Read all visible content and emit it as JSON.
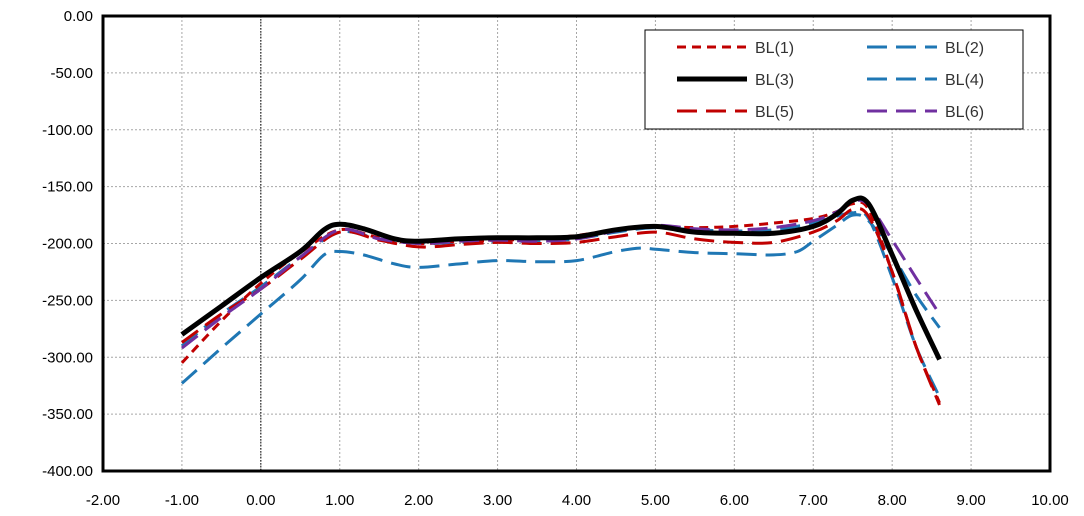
{
  "chart_data": {
    "type": "line",
    "title": "",
    "xlabel": "",
    "ylabel": "",
    "xlim": [
      -2,
      10
    ],
    "ylim": [
      -400,
      0
    ],
    "x_ticks": [
      "-2.00",
      "-1.00",
      "0.00",
      "1.00",
      "2.00",
      "3.00",
      "4.00",
      "5.00",
      "6.00",
      "7.00",
      "8.00",
      "9.00",
      "10.00"
    ],
    "y_ticks": [
      "0.00",
      "-50.00",
      "-100.00",
      "-150.00",
      "-200.00",
      "-250.00",
      "-300.00",
      "-350.00",
      "-400.00"
    ],
    "grid": true,
    "legend_position": "top-right",
    "reference_line_x": 0,
    "series": [
      {
        "name": "BL(1)",
        "color": "#c00000",
        "dash": "short-dash",
        "width": 3,
        "points": [
          [
            -1.0,
            -305
          ],
          [
            -0.5,
            -268
          ],
          [
            0.0,
            -235
          ],
          [
            0.5,
            -208
          ],
          [
            1.0,
            -188
          ],
          [
            1.5,
            -195
          ],
          [
            2.0,
            -200
          ],
          [
            2.5,
            -198
          ],
          [
            3.0,
            -197
          ],
          [
            3.5,
            -196
          ],
          [
            4.0,
            -193
          ],
          [
            4.5,
            -188
          ],
          [
            5.0,
            -185
          ],
          [
            5.5,
            -186
          ],
          [
            6.0,
            -185
          ],
          [
            6.5,
            -182
          ],
          [
            7.0,
            -178
          ],
          [
            7.3,
            -172
          ],
          [
            7.5,
            -165
          ],
          [
            7.7,
            -170
          ],
          [
            8.0,
            -225
          ],
          [
            8.3,
            -290
          ],
          [
            8.6,
            -340
          ]
        ]
      },
      {
        "name": "BL(2)",
        "color": "#1f77b4",
        "dash": "long-dash",
        "width": 3,
        "points": [
          [
            -1.0,
            -290
          ],
          [
            -0.5,
            -262
          ],
          [
            0.0,
            -238
          ],
          [
            0.5,
            -212
          ],
          [
            1.0,
            -190
          ],
          [
            1.5,
            -196
          ],
          [
            2.0,
            -200
          ],
          [
            2.5,
            -199
          ],
          [
            3.0,
            -198
          ],
          [
            3.5,
            -198
          ],
          [
            4.0,
            -196
          ],
          [
            4.5,
            -190
          ],
          [
            5.0,
            -186
          ],
          [
            5.5,
            -188
          ],
          [
            6.0,
            -189
          ],
          [
            6.5,
            -188
          ],
          [
            7.0,
            -182
          ],
          [
            7.3,
            -176
          ],
          [
            7.5,
            -173
          ],
          [
            7.7,
            -178
          ],
          [
            8.0,
            -230
          ],
          [
            8.3,
            -290
          ],
          [
            8.6,
            -335
          ]
        ]
      },
      {
        "name": "BL(3)",
        "color": "#000000",
        "dash": "solid",
        "width": 5,
        "points": [
          [
            -1.0,
            -280
          ],
          [
            -0.5,
            -255
          ],
          [
            0.0,
            -230
          ],
          [
            0.5,
            -207
          ],
          [
            0.8,
            -188
          ],
          [
            1.0,
            -183
          ],
          [
            1.3,
            -187
          ],
          [
            1.7,
            -196
          ],
          [
            2.0,
            -198
          ],
          [
            2.5,
            -196
          ],
          [
            3.0,
            -195
          ],
          [
            3.5,
            -195
          ],
          [
            4.0,
            -194
          ],
          [
            4.5,
            -188
          ],
          [
            5.0,
            -185
          ],
          [
            5.5,
            -190
          ],
          [
            6.0,
            -191
          ],
          [
            6.5,
            -191
          ],
          [
            7.0,
            -185
          ],
          [
            7.3,
            -174
          ],
          [
            7.5,
            -162
          ],
          [
            7.7,
            -165
          ],
          [
            8.0,
            -210
          ],
          [
            8.3,
            -258
          ],
          [
            8.6,
            -302
          ]
        ]
      },
      {
        "name": "BL(4)",
        "color": "#1f77b4",
        "dash": "long-dash",
        "width": 3,
        "points": [
          [
            -1.0,
            -323
          ],
          [
            -0.5,
            -292
          ],
          [
            0.0,
            -262
          ],
          [
            0.5,
            -232
          ],
          [
            0.8,
            -210
          ],
          [
            1.0,
            -207
          ],
          [
            1.3,
            -210
          ],
          [
            1.7,
            -218
          ],
          [
            2.0,
            -221
          ],
          [
            2.5,
            -218
          ],
          [
            3.0,
            -215
          ],
          [
            3.5,
            -216
          ],
          [
            4.0,
            -215
          ],
          [
            4.5,
            -207
          ],
          [
            4.8,
            -204
          ],
          [
            5.0,
            -205
          ],
          [
            5.5,
            -208
          ],
          [
            6.0,
            -209
          ],
          [
            6.5,
            -210
          ],
          [
            6.8,
            -207
          ],
          [
            7.0,
            -198
          ],
          [
            7.3,
            -184
          ],
          [
            7.5,
            -175
          ],
          [
            7.7,
            -180
          ],
          [
            8.0,
            -210
          ],
          [
            8.3,
            -245
          ],
          [
            8.6,
            -274
          ]
        ]
      },
      {
        "name": "BL(5)",
        "color": "#c00000",
        "dash": "long-dash",
        "width": 3,
        "points": [
          [
            -1.0,
            -287
          ],
          [
            -0.5,
            -262
          ],
          [
            0.0,
            -240
          ],
          [
            0.5,
            -214
          ],
          [
            1.0,
            -190
          ],
          [
            1.5,
            -197
          ],
          [
            2.0,
            -203
          ],
          [
            2.5,
            -201
          ],
          [
            3.0,
            -199
          ],
          [
            3.5,
            -200
          ],
          [
            4.0,
            -199
          ],
          [
            4.5,
            -194
          ],
          [
            5.0,
            -190
          ],
          [
            5.5,
            -196
          ],
          [
            6.0,
            -199
          ],
          [
            6.5,
            -199
          ],
          [
            7.0,
            -190
          ],
          [
            7.3,
            -180
          ],
          [
            7.5,
            -170
          ],
          [
            7.7,
            -176
          ],
          [
            8.0,
            -225
          ],
          [
            8.3,
            -290
          ],
          [
            8.6,
            -342
          ]
        ]
      },
      {
        "name": "BL(6)",
        "color": "#7030a0",
        "dash": "long-dash",
        "width": 3,
        "points": [
          [
            -1.0,
            -292
          ],
          [
            -0.5,
            -265
          ],
          [
            0.0,
            -240
          ],
          [
            0.5,
            -212
          ],
          [
            1.0,
            -188
          ],
          [
            1.5,
            -196
          ],
          [
            2.0,
            -200
          ],
          [
            2.5,
            -198
          ],
          [
            3.0,
            -197
          ],
          [
            3.5,
            -198
          ],
          [
            4.0,
            -196
          ],
          [
            4.5,
            -189
          ],
          [
            5.0,
            -184
          ],
          [
            5.5,
            -187
          ],
          [
            6.0,
            -188
          ],
          [
            6.5,
            -186
          ],
          [
            7.0,
            -180
          ],
          [
            7.3,
            -172
          ],
          [
            7.5,
            -163
          ],
          [
            7.7,
            -166
          ],
          [
            8.0,
            -197
          ],
          [
            8.3,
            -230
          ],
          [
            8.6,
            -262
          ]
        ]
      }
    ]
  }
}
